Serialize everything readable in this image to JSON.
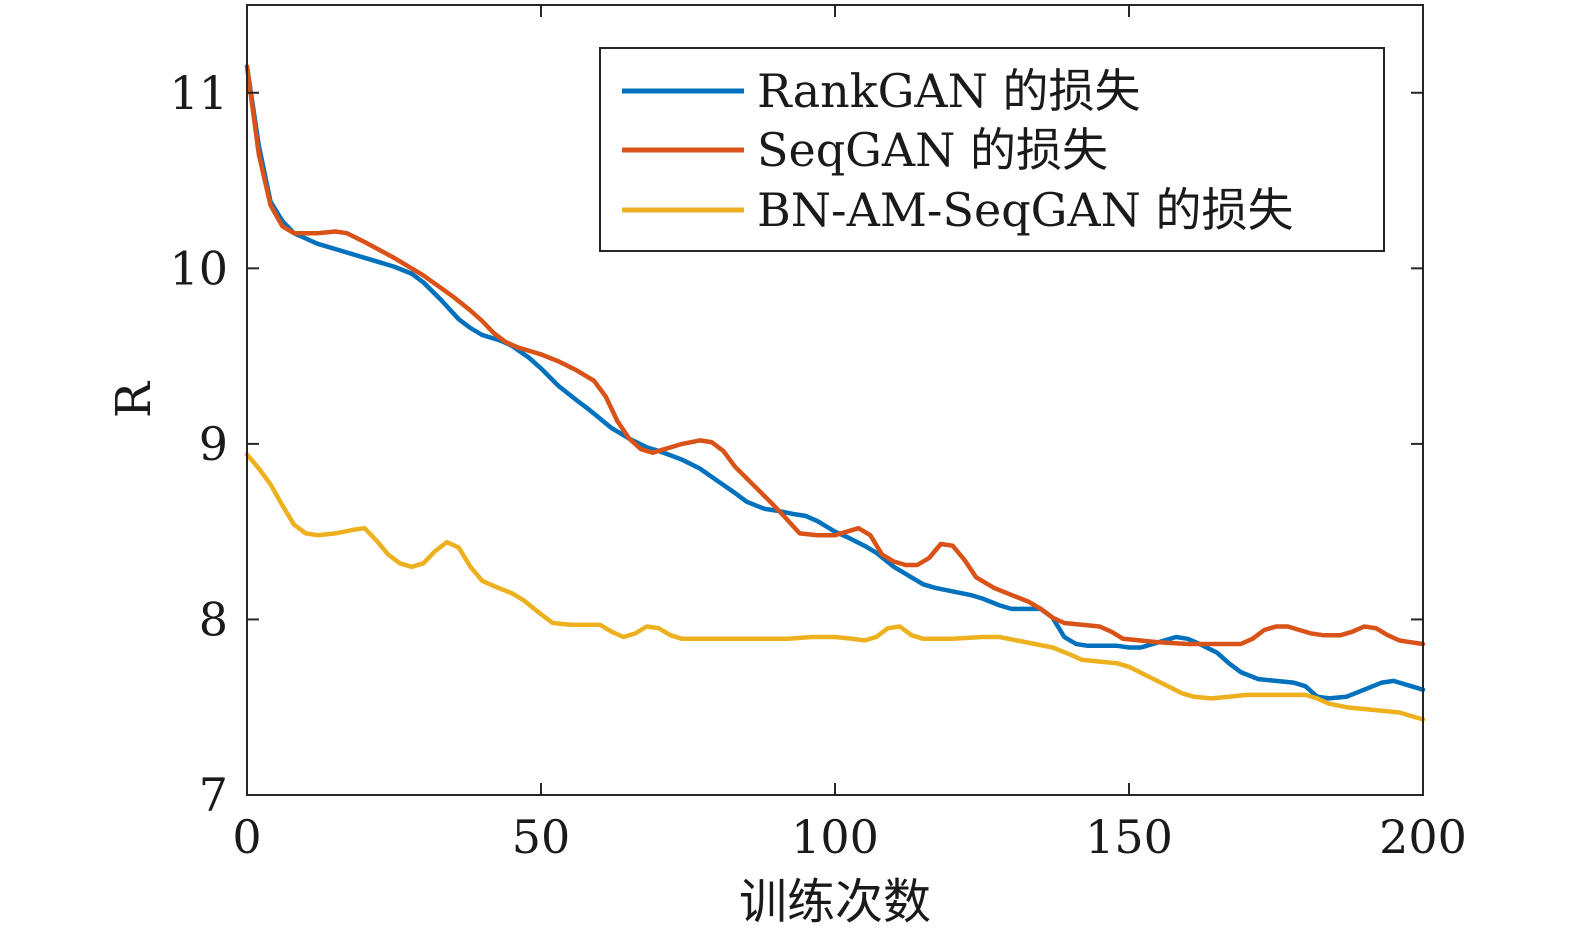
{
  "chart_data": {
    "type": "line",
    "xlabel": "训练次数",
    "ylabel": "R",
    "xlim": [
      0,
      200
    ],
    "ylim": [
      7,
      11.5
    ],
    "xticks": [
      0,
      50,
      100,
      150,
      200
    ],
    "yticks": [
      7,
      8,
      9,
      10,
      11
    ],
    "grid": false,
    "legend_position": "top-right",
    "series": [
      {
        "name": "RankGAN 的损失",
        "color": "#0072BD",
        "points": [
          [
            0,
            11.15
          ],
          [
            2,
            10.7
          ],
          [
            4,
            10.38
          ],
          [
            6,
            10.27
          ],
          [
            8,
            10.2
          ],
          [
            10,
            10.17
          ],
          [
            12,
            10.14
          ],
          [
            15,
            10.11
          ],
          [
            20,
            10.06
          ],
          [
            25,
            10.01
          ],
          [
            28,
            9.97
          ],
          [
            30,
            9.92
          ],
          [
            33,
            9.82
          ],
          [
            36,
            9.71
          ],
          [
            38,
            9.66
          ],
          [
            40,
            9.62
          ],
          [
            43,
            9.59
          ],
          [
            45,
            9.56
          ],
          [
            48,
            9.49
          ],
          [
            50,
            9.43
          ],
          [
            53,
            9.33
          ],
          [
            56,
            9.25
          ],
          [
            58,
            9.2
          ],
          [
            62,
            9.09
          ],
          [
            65,
            9.03
          ],
          [
            68,
            8.98
          ],
          [
            70,
            8.96
          ],
          [
            74,
            8.91
          ],
          [
            77,
            8.86
          ],
          [
            80,
            8.79
          ],
          [
            83,
            8.72
          ],
          [
            85,
            8.67
          ],
          [
            88,
            8.63
          ],
          [
            90,
            8.62
          ],
          [
            93,
            8.6
          ],
          [
            95,
            8.59
          ],
          [
            97,
            8.56
          ],
          [
            100,
            8.5
          ],
          [
            102,
            8.47
          ],
          [
            105,
            8.42
          ],
          [
            107,
            8.38
          ],
          [
            110,
            8.3
          ],
          [
            113,
            8.24
          ],
          [
            115,
            8.2
          ],
          [
            117,
            8.18
          ],
          [
            120,
            8.16
          ],
          [
            123,
            8.14
          ],
          [
            125,
            8.12
          ],
          [
            128,
            8.08
          ],
          [
            130,
            8.06
          ],
          [
            135,
            8.06
          ],
          [
            137,
            8.01
          ],
          [
            139,
            7.9
          ],
          [
            141,
            7.86
          ],
          [
            143,
            7.85
          ],
          [
            146,
            7.85
          ],
          [
            148,
            7.85
          ],
          [
            150,
            7.84
          ],
          [
            152,
            7.84
          ],
          [
            155,
            7.87
          ],
          [
            158,
            7.9
          ],
          [
            160,
            7.89
          ],
          [
            162,
            7.86
          ],
          [
            165,
            7.81
          ],
          [
            167,
            7.75
          ],
          [
            169,
            7.7
          ],
          [
            172,
            7.66
          ],
          [
            175,
            7.65
          ],
          [
            178,
            7.64
          ],
          [
            180,
            7.62
          ],
          [
            182,
            7.56
          ],
          [
            184,
            7.55
          ],
          [
            187,
            7.56
          ],
          [
            190,
            7.6
          ],
          [
            193,
            7.64
          ],
          [
            195,
            7.65
          ],
          [
            198,
            7.62
          ],
          [
            200,
            7.6
          ]
        ]
      },
      {
        "name": "SeqGAN 的损失",
        "color": "#D95319",
        "points": [
          [
            0,
            11.15
          ],
          [
            2,
            10.65
          ],
          [
            4,
            10.36
          ],
          [
            6,
            10.24
          ],
          [
            8,
            10.2
          ],
          [
            10,
            10.2
          ],
          [
            12,
            10.2
          ],
          [
            15,
            10.21
          ],
          [
            17,
            10.2
          ],
          [
            20,
            10.15
          ],
          [
            25,
            10.06
          ],
          [
            30,
            9.96
          ],
          [
            35,
            9.84
          ],
          [
            38,
            9.76
          ],
          [
            40,
            9.7
          ],
          [
            42,
            9.63
          ],
          [
            44,
            9.58
          ],
          [
            46,
            9.55
          ],
          [
            50,
            9.51
          ],
          [
            53,
            9.47
          ],
          [
            56,
            9.42
          ],
          [
            59,
            9.36
          ],
          [
            61,
            9.27
          ],
          [
            63,
            9.13
          ],
          [
            65,
            9.03
          ],
          [
            67,
            8.97
          ],
          [
            69,
            8.95
          ],
          [
            71,
            8.97
          ],
          [
            74,
            9.0
          ],
          [
            77,
            9.02
          ],
          [
            79,
            9.01
          ],
          [
            81,
            8.96
          ],
          [
            83,
            8.87
          ],
          [
            86,
            8.77
          ],
          [
            89,
            8.67
          ],
          [
            91,
            8.6
          ],
          [
            94,
            8.49
          ],
          [
            97,
            8.48
          ],
          [
            100,
            8.48
          ],
          [
            102,
            8.5
          ],
          [
            104,
            8.52
          ],
          [
            106,
            8.48
          ],
          [
            108,
            8.37
          ],
          [
            110,
            8.33
          ],
          [
            112,
            8.31
          ],
          [
            114,
            8.31
          ],
          [
            116,
            8.35
          ],
          [
            118,
            8.43
          ],
          [
            120,
            8.42
          ],
          [
            122,
            8.34
          ],
          [
            124,
            8.24
          ],
          [
            127,
            8.18
          ],
          [
            130,
            8.14
          ],
          [
            133,
            8.1
          ],
          [
            135,
            8.06
          ],
          [
            137,
            8.01
          ],
          [
            139,
            7.98
          ],
          [
            142,
            7.97
          ],
          [
            145,
            7.96
          ],
          [
            147,
            7.93
          ],
          [
            149,
            7.89
          ],
          [
            152,
            7.88
          ],
          [
            155,
            7.87
          ],
          [
            160,
            7.86
          ],
          [
            165,
            7.86
          ],
          [
            169,
            7.86
          ],
          [
            171,
            7.89
          ],
          [
            173,
            7.94
          ],
          [
            175,
            7.96
          ],
          [
            177,
            7.96
          ],
          [
            179,
            7.94
          ],
          [
            181,
            7.92
          ],
          [
            183,
            7.91
          ],
          [
            186,
            7.91
          ],
          [
            188,
            7.93
          ],
          [
            190,
            7.96
          ],
          [
            192,
            7.95
          ],
          [
            194,
            7.91
          ],
          [
            196,
            7.88
          ],
          [
            198,
            7.87
          ],
          [
            200,
            7.86
          ]
        ]
      },
      {
        "name": "BN-AM-SeqGAN 的损失",
        "color": "#EDB120",
        "points": [
          [
            0,
            8.94
          ],
          [
            2,
            8.86
          ],
          [
            4,
            8.77
          ],
          [
            6,
            8.65
          ],
          [
            8,
            8.54
          ],
          [
            10,
            8.49
          ],
          [
            12,
            8.48
          ],
          [
            15,
            8.49
          ],
          [
            18,
            8.51
          ],
          [
            20,
            8.52
          ],
          [
            22,
            8.45
          ],
          [
            24,
            8.37
          ],
          [
            26,
            8.32
          ],
          [
            28,
            8.3
          ],
          [
            30,
            8.32
          ],
          [
            32,
            8.39
          ],
          [
            34,
            8.44
          ],
          [
            36,
            8.41
          ],
          [
            38,
            8.3
          ],
          [
            40,
            8.22
          ],
          [
            42,
            8.19
          ],
          [
            45,
            8.15
          ],
          [
            47,
            8.11
          ],
          [
            50,
            8.03
          ],
          [
            52,
            7.98
          ],
          [
            55,
            7.97
          ],
          [
            60,
            7.97
          ],
          [
            62,
            7.93
          ],
          [
            64,
            7.9
          ],
          [
            66,
            7.92
          ],
          [
            68,
            7.96
          ],
          [
            70,
            7.95
          ],
          [
            72,
            7.91
          ],
          [
            74,
            7.89
          ],
          [
            80,
            7.89
          ],
          [
            85,
            7.89
          ],
          [
            92,
            7.89
          ],
          [
            96,
            7.9
          ],
          [
            100,
            7.9
          ],
          [
            103,
            7.89
          ],
          [
            105,
            7.88
          ],
          [
            107,
            7.9
          ],
          [
            109,
            7.95
          ],
          [
            111,
            7.96
          ],
          [
            113,
            7.91
          ],
          [
            115,
            7.89
          ],
          [
            120,
            7.89
          ],
          [
            125,
            7.9
          ],
          [
            128,
            7.9
          ],
          [
            131,
            7.88
          ],
          [
            134,
            7.86
          ],
          [
            137,
            7.84
          ],
          [
            140,
            7.8
          ],
          [
            142,
            7.77
          ],
          [
            145,
            7.76
          ],
          [
            148,
            7.75
          ],
          [
            150,
            7.73
          ],
          [
            153,
            7.68
          ],
          [
            156,
            7.63
          ],
          [
            159,
            7.58
          ],
          [
            161,
            7.56
          ],
          [
            164,
            7.55
          ],
          [
            167,
            7.56
          ],
          [
            170,
            7.57
          ],
          [
            175,
            7.57
          ],
          [
            180,
            7.57
          ],
          [
            182,
            7.55
          ],
          [
            184,
            7.52
          ],
          [
            187,
            7.5
          ],
          [
            190,
            7.49
          ],
          [
            193,
            7.48
          ],
          [
            196,
            7.47
          ],
          [
            198,
            7.45
          ],
          [
            200,
            7.43
          ]
        ]
      }
    ]
  }
}
